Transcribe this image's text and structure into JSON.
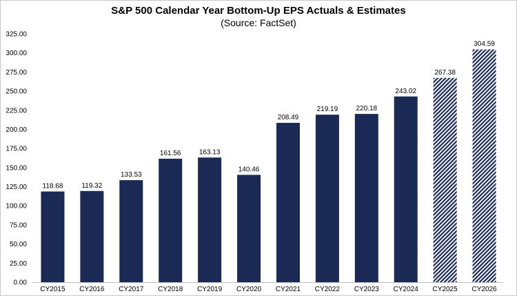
{
  "chart_data": {
    "type": "bar",
    "title": "S&P 500 Calendar Year Bottom-Up EPS Actuals & Estimates",
    "subtitle": "(Source: FactSet)",
    "categories": [
      "CY2015",
      "CY2016",
      "CY2017",
      "CY2018",
      "CY2019",
      "CY2020",
      "CY2021",
      "CY2022",
      "CY2023",
      "CY2024",
      "CY2025",
      "CY2026"
    ],
    "values": [
      118.68,
      119.32,
      133.53,
      161.56,
      163.13,
      140.46,
      208.49,
      219.19,
      220.18,
      243.02,
      267.38,
      304.59
    ],
    "value_labels": [
      "118.68",
      "119.32",
      "133.53",
      "161.56",
      "163.13",
      "140.46",
      "208.49",
      "219.19",
      "220.18",
      "243.02",
      "267.38",
      "304.59"
    ],
    "estimate": [
      false,
      false,
      false,
      false,
      false,
      false,
      false,
      false,
      false,
      false,
      true,
      true
    ],
    "ylim": [
      0,
      325
    ],
    "yticks": [
      "0.00",
      "25.00",
      "50.00",
      "75.00",
      "100.00",
      "125.00",
      "150.00",
      "175.00",
      "200.00",
      "225.00",
      "250.00",
      "275.00",
      "300.00",
      "325.00"
    ],
    "grid": false,
    "colors": {
      "actual": "#1b2a55",
      "estimate": "#1b2a55"
    }
  }
}
